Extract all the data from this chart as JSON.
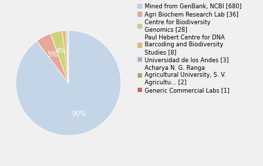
{
  "labels": [
    "Mined from GenBank, NCBI [680]",
    "Agri Biochem Research Lab [36]",
    "Centre for Biodiversity\nGenomics [28]",
    "Paul Hebert Centre for DNA\nBarcoding and Biodiversity\nStudies [8]",
    "Universidad de los Andes [3]",
    "Acharya N. G. Ranga\nAgricultural University, S. V.\nAgricultu... [2]",
    "Generic Commercial Labs [1]"
  ],
  "values": [
    680,
    36,
    28,
    8,
    3,
    2,
    1
  ],
  "colors": [
    "#c5d5e8",
    "#e8a898",
    "#cdd47a",
    "#e8b86a",
    "#9ab4d0",
    "#88b870",
    "#cc6055"
  ],
  "startangle": 90,
  "background_color": "#f0f0f0"
}
